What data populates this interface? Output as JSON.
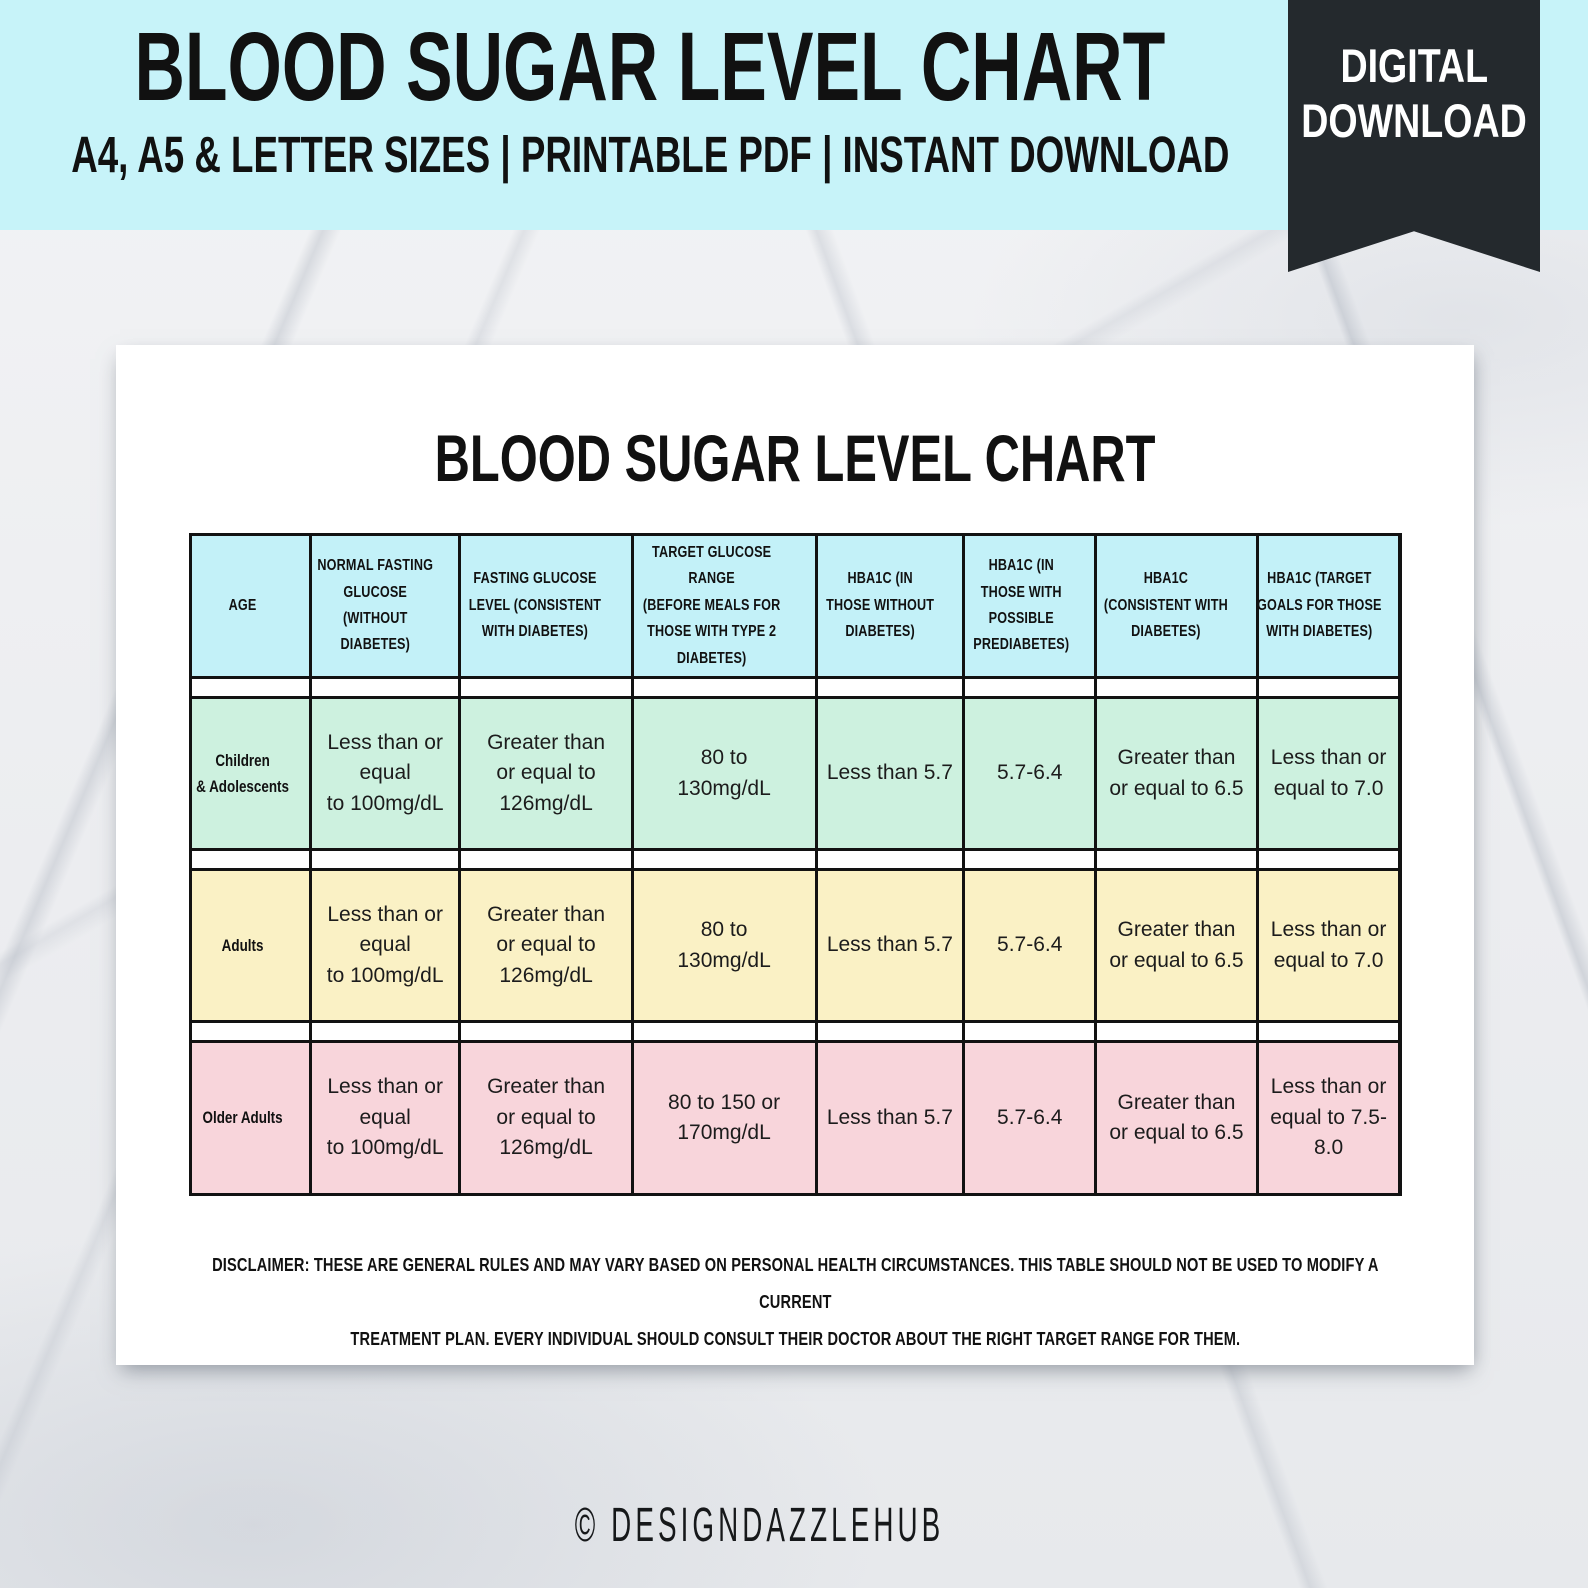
{
  "banner": {
    "title": "BLOOD SUGAR LEVEL CHART",
    "subtitle": "A4, A5 & LETTER SIZES | PRINTABLE PDF | INSTANT DOWNLOAD"
  },
  "ribbon": {
    "line1": "DIGITAL",
    "line2": "DOWNLOAD"
  },
  "page": {
    "title": "BLOOD SUGAR LEVEL CHART",
    "disclaimer": "DISCLAIMER: THESE ARE GENERAL RULES AND MAY VARY BASED ON PERSONAL HEALTH CIRCUMSTANCES. THIS TABLE SHOULD NOT BE USED TO MODIFY A CURRENT\nTREATMENT PLAN. EVERY INDIVIDUAL SHOULD CONSULT THEIR DOCTOR ABOUT THE RIGHT TARGET RANGE FOR THEM."
  },
  "table": {
    "header_bg": "#c3f1f8",
    "headers": [
      "AGE",
      "NORMAL FASTING\nGLUCOSE (WITHOUT\nDIABETES)",
      "FASTING GLUCOSE\nLEVEL (CONSISTENT\nWITH DIABETES)",
      "TARGET GLUCOSE RANGE\n(BEFORE MEALS FOR\nTHOSE WITH TYPE 2\nDIABETES)",
      "HBA1C (IN\nTHOSE WITHOUT\nDIABETES)",
      "HBA1C (IN\nTHOSE WITH\nPOSSIBLE\nPREDIABETES)",
      "HBA1C\n(CONSISTENT WITH\nDIABETES)",
      "HBA1C (TARGET\nGOALS FOR THOSE\nWITH DIABETES)"
    ],
    "rows": [
      {
        "label": "Children\n& Adolescents",
        "color": "#cdf1df",
        "cells": [
          "Less than or\nequal\nto 100mg/dL",
          "Greater than\nor equal to\n126mg/dL",
          "80 to\n130mg/dL",
          "Less than 5.7",
          "5.7-6.4",
          "Greater than\nor equal to 6.5",
          "Less than or\nequal to 7.0"
        ]
      },
      {
        "label": "Adults",
        "color": "#faf1c5",
        "cells": [
          "Less than or\nequal\nto 100mg/dL",
          "Greater than\nor equal to\n126mg/dL",
          "80 to\n130mg/dL",
          "Less than 5.7",
          "5.7-6.4",
          "Greater than\nor equal to 6.5",
          "Less than or\nequal to 7.0"
        ]
      },
      {
        "label": "Older Adults",
        "color": "#f8d5db",
        "cells": [
          "Less than or\nequal\nto 100mg/dL",
          "Greater than\nor equal to\n126mg/dL",
          "80 to 150 or\n170mg/dL",
          "Less than 5.7",
          "5.7-6.4",
          "Greater than\nor equal to 6.5",
          "Less than or\nequal to 7.5-\n8.0"
        ]
      }
    ]
  },
  "chart_data": {
    "type": "table",
    "title": "BLOOD SUGAR LEVEL CHART",
    "columns": [
      "AGE",
      "NORMAL FASTING GLUCOSE (WITHOUT DIABETES)",
      "FASTING GLUCOSE LEVEL (CONSISTENT WITH DIABETES)",
      "TARGET GLUCOSE RANGE (BEFORE MEALS FOR THOSE WITH TYPE 2 DIABETES)",
      "HBA1C (IN THOSE WITHOUT DIABETES)",
      "HBA1C (IN THOSE WITH POSSIBLE PREDIABETES)",
      "HBA1C (CONSISTENT WITH DIABETES)",
      "HBA1C (TARGET GOALS FOR THOSE WITH DIABETES)"
    ],
    "rows": [
      [
        "Children & Adolescents",
        "Less than or equal to 100mg/dL",
        "Greater than or equal to 126mg/dL",
        "80 to 130mg/dL",
        "Less than 5.7",
        "5.7-6.4",
        "Greater than or equal to 6.5",
        "Less than or equal to 7.0"
      ],
      [
        "Adults",
        "Less than or equal to 100mg/dL",
        "Greater than or equal to 126mg/dL",
        "80 to 130mg/dL",
        "Less than 5.7",
        "5.7-6.4",
        "Greater than or equal to 6.5",
        "Less than or equal to 7.0"
      ],
      [
        "Older Adults",
        "Less than or equal to 100mg/dL",
        "Greater than or equal to 126mg/dL",
        "80 to 150 or 170mg/dL",
        "Less than 5.7",
        "5.7-6.4",
        "Greater than or equal to 6.5",
        "Less than or equal to 7.5-8.0"
      ]
    ]
  },
  "footer": {
    "credit": "© DESIGNDAZZLEHUB"
  },
  "colors": {
    "banner_bg": "#c7f3f9",
    "ribbon_bg": "#24292d",
    "header_cell_bg": "#c3f1f8",
    "row_mint": "#cdf1df",
    "row_yellow": "#faf1c5",
    "row_pink": "#f8d5db",
    "table_border": "#121212",
    "page_bg": "#ffffff"
  }
}
